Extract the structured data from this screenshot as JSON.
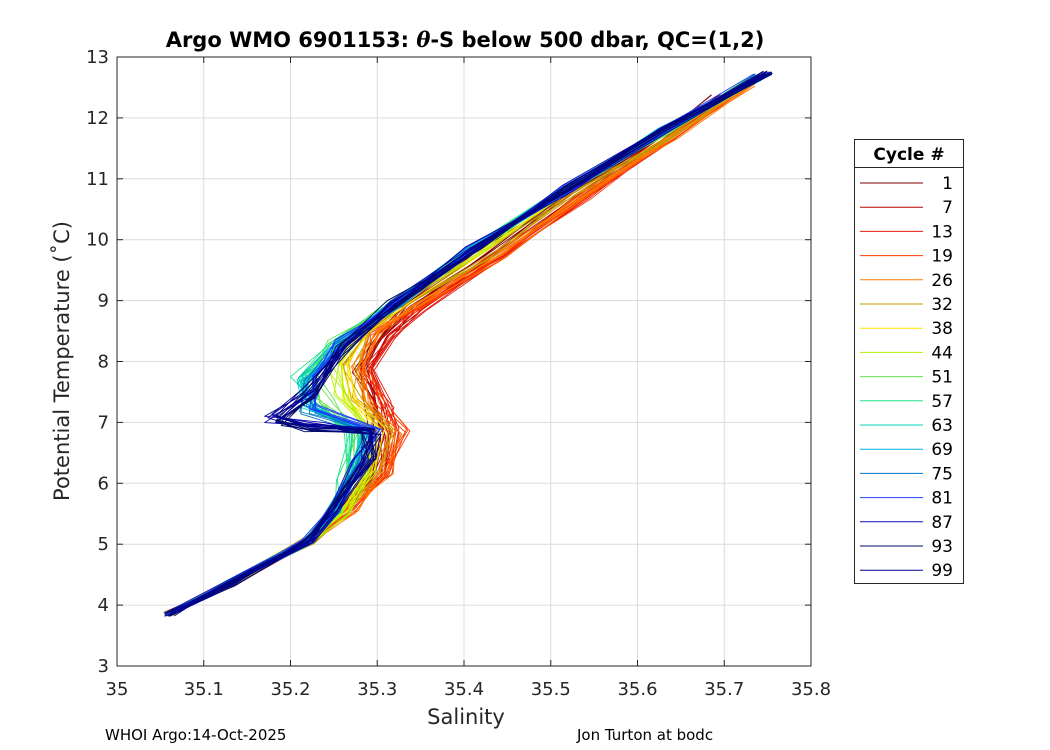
{
  "chart_data": {
    "type": "line",
    "title_parts": [
      "Argo WMO 6901153: ",
      "θ",
      "-S below 500 dbar,  QC=(1,2)"
    ],
    "xlabel": "Salinity",
    "ylabel": "Potential Temperature (˚C)",
    "xlim": [
      35,
      35.8
    ],
    "ylim": [
      3,
      13
    ],
    "xticks": [
      35,
      35.1,
      35.2,
      35.3,
      35.4,
      35.5,
      35.6,
      35.7,
      35.8
    ],
    "xtick_labels": [
      "35",
      "35.1",
      "35.2",
      "35.3",
      "35.4",
      "35.5",
      "35.6",
      "35.7",
      "35.8"
    ],
    "yticks": [
      3,
      4,
      5,
      6,
      7,
      8,
      9,
      10,
      11,
      12,
      13
    ],
    "ytick_labels": [
      "3",
      "4",
      "5",
      "6",
      "7",
      "8",
      "9",
      "10",
      "11",
      "12",
      "13"
    ],
    "grid": true,
    "legend_title": "Cycle #",
    "legend_position": "outside-right",
    "series": [
      {
        "name": "1",
        "color": "#7f0000",
        "x": [
          35.06,
          35.13,
          35.22,
          35.26,
          35.29,
          35.3,
          35.29,
          35.28,
          35.3,
          35.34,
          35.42,
          35.52,
          35.62,
          35.69
        ],
        "y": [
          3.85,
          4.35,
          5.05,
          5.55,
          6.15,
          6.8,
          7.35,
          7.85,
          8.45,
          8.95,
          9.75,
          10.75,
          11.65,
          12.35
        ]
      },
      {
        "name": "7",
        "color": "#bb0000",
        "x": [
          35.06,
          35.13,
          35.22,
          35.26,
          35.3,
          35.31,
          35.3,
          35.29,
          35.31,
          35.35,
          35.43,
          35.53,
          35.63,
          35.71
        ],
        "y": [
          3.85,
          4.35,
          5.05,
          5.55,
          6.15,
          6.8,
          7.3,
          7.85,
          8.4,
          8.9,
          9.7,
          10.7,
          11.65,
          12.45
        ]
      },
      {
        "name": "13",
        "color": "#e41a0e",
        "x": [
          35.06,
          35.13,
          35.22,
          35.26,
          35.31,
          35.32,
          35.31,
          35.29,
          35.31,
          35.35,
          35.44,
          35.54,
          35.64,
          35.72
        ],
        "y": [
          3.85,
          4.35,
          5.05,
          5.55,
          6.2,
          6.85,
          7.3,
          7.9,
          8.4,
          8.9,
          9.7,
          10.7,
          11.7,
          12.5
        ]
      },
      {
        "name": "19",
        "color": "#ff3c00",
        "x": [
          35.06,
          35.13,
          35.22,
          35.27,
          35.31,
          35.33,
          35.3,
          35.28,
          35.3,
          35.35,
          35.44,
          35.54,
          35.64,
          35.73
        ],
        "y": [
          3.85,
          4.35,
          5.05,
          5.55,
          6.2,
          6.85,
          7.35,
          7.95,
          8.45,
          8.9,
          9.75,
          10.7,
          11.7,
          12.55
        ]
      },
      {
        "name": "26",
        "color": "#ff7a00",
        "x": [
          35.06,
          35.13,
          35.22,
          35.27,
          35.31,
          35.32,
          35.29,
          35.28,
          35.3,
          35.35,
          35.44,
          35.54,
          35.64,
          35.73
        ],
        "y": [
          3.85,
          4.35,
          5.05,
          5.55,
          6.2,
          6.85,
          7.35,
          7.95,
          8.5,
          8.95,
          9.75,
          10.75,
          11.7,
          12.55
        ]
      },
      {
        "name": "32",
        "color": "#c89a00",
        "x": [
          35.06,
          35.13,
          35.22,
          35.26,
          35.3,
          35.31,
          35.28,
          35.27,
          35.29,
          35.34,
          35.43,
          35.53,
          35.64,
          35.73
        ],
        "y": [
          3.85,
          4.35,
          5.05,
          5.55,
          6.2,
          6.85,
          7.4,
          7.95,
          8.5,
          9.0,
          9.8,
          10.8,
          11.7,
          12.6
        ]
      },
      {
        "name": "38",
        "color": "#ffe600",
        "x": [
          35.06,
          35.13,
          35.22,
          35.26,
          35.29,
          35.3,
          35.27,
          35.26,
          35.28,
          35.33,
          35.42,
          35.52,
          35.63,
          35.73
        ],
        "y": [
          3.85,
          4.35,
          5.05,
          5.55,
          6.2,
          6.85,
          7.4,
          7.95,
          8.5,
          9.0,
          9.85,
          10.85,
          11.75,
          12.6
        ]
      },
      {
        "name": "44",
        "color": "#b5f000",
        "x": [
          35.06,
          35.13,
          35.22,
          35.26,
          35.29,
          35.29,
          35.26,
          35.25,
          35.28,
          35.33,
          35.42,
          35.52,
          35.63,
          35.73
        ],
        "y": [
          3.85,
          4.35,
          5.05,
          5.5,
          6.15,
          6.85,
          7.4,
          7.95,
          8.5,
          9.0,
          9.85,
          10.85,
          11.75,
          12.6
        ]
      },
      {
        "name": "51",
        "color": "#5ee64a",
        "x": [
          35.06,
          35.13,
          35.22,
          35.25,
          35.27,
          35.28,
          35.24,
          35.22,
          35.25,
          35.32,
          35.41,
          35.52,
          35.63,
          35.73
        ],
        "y": [
          3.85,
          4.35,
          5.05,
          5.55,
          6.15,
          6.85,
          7.35,
          7.8,
          8.3,
          8.95,
          9.85,
          10.85,
          11.75,
          12.65
        ]
      },
      {
        "name": "57",
        "color": "#1fe28a",
        "x": [
          35.06,
          35.13,
          35.22,
          35.25,
          35.26,
          35.27,
          35.22,
          35.21,
          35.25,
          35.32,
          35.41,
          35.52,
          35.63,
          35.74
        ],
        "y": [
          3.85,
          4.35,
          5.05,
          5.55,
          6.1,
          6.85,
          7.35,
          7.75,
          8.25,
          8.95,
          9.85,
          10.85,
          11.8,
          12.65
        ]
      },
      {
        "name": "63",
        "color": "#00d3b8",
        "x": [
          35.06,
          35.13,
          35.22,
          35.25,
          35.27,
          35.28,
          35.22,
          35.21,
          35.25,
          35.32,
          35.41,
          35.52,
          35.63,
          35.74
        ],
        "y": [
          3.85,
          4.35,
          5.05,
          5.55,
          6.2,
          6.85,
          7.3,
          7.7,
          8.2,
          8.95,
          9.85,
          10.85,
          11.8,
          12.65
        ]
      },
      {
        "name": "69",
        "color": "#00b4e0",
        "x": [
          35.06,
          35.13,
          35.22,
          35.25,
          35.28,
          35.29,
          35.23,
          35.21,
          35.25,
          35.32,
          35.41,
          35.52,
          35.63,
          35.74
        ],
        "y": [
          3.85,
          4.35,
          5.05,
          5.55,
          6.3,
          6.85,
          7.25,
          7.65,
          8.2,
          8.95,
          9.85,
          10.85,
          11.8,
          12.65
        ]
      },
      {
        "name": "75",
        "color": "#0078c8",
        "x": [
          35.06,
          35.13,
          35.22,
          35.25,
          35.28,
          35.29,
          35.22,
          35.22,
          35.26,
          35.32,
          35.41,
          35.52,
          35.63,
          35.74
        ],
        "y": [
          3.85,
          4.35,
          5.05,
          5.55,
          6.35,
          6.85,
          7.2,
          7.7,
          8.25,
          8.95,
          9.85,
          10.85,
          11.8,
          12.7
        ]
      },
      {
        "name": "81",
        "color": "#1c3fff",
        "x": [
          35.06,
          35.13,
          35.22,
          35.25,
          35.28,
          35.3,
          35.22,
          35.23,
          35.26,
          35.32,
          35.41,
          35.52,
          35.63,
          35.74
        ],
        "y": [
          3.85,
          4.35,
          5.05,
          5.55,
          6.4,
          6.85,
          7.25,
          7.75,
          8.3,
          8.95,
          9.85,
          10.85,
          11.8,
          12.7
        ]
      },
      {
        "name": "87",
        "color": "#0a0ab4",
        "x": [
          35.06,
          35.13,
          35.22,
          35.25,
          35.28,
          35.3,
          35.23,
          35.18,
          35.23,
          35.26,
          35.32,
          35.41,
          35.52,
          35.63,
          35.75
        ],
        "y": [
          3.85,
          4.35,
          5.05,
          5.55,
          6.4,
          6.85,
          6.95,
          7.05,
          7.5,
          8.25,
          8.95,
          9.85,
          10.85,
          11.8,
          12.75
        ]
      },
      {
        "name": "93",
        "color": "#000a64",
        "x": [
          35.06,
          35.13,
          35.22,
          35.25,
          35.29,
          35.29,
          35.22,
          35.18,
          35.22,
          35.26,
          35.32,
          35.41,
          35.52,
          35.63,
          35.75
        ],
        "y": [
          3.85,
          4.35,
          5.05,
          5.55,
          6.4,
          6.85,
          6.9,
          7.0,
          7.45,
          8.25,
          8.95,
          9.85,
          10.85,
          11.8,
          12.75
        ]
      },
      {
        "name": "99",
        "color": "#00008c",
        "x": [
          35.06,
          35.13,
          35.22,
          35.25,
          35.29,
          35.3,
          35.22,
          35.18,
          35.22,
          35.27,
          35.32,
          35.41,
          35.52,
          35.63,
          35.75
        ],
        "y": [
          3.85,
          4.35,
          5.05,
          5.55,
          6.45,
          6.85,
          6.95,
          7.1,
          7.5,
          8.3,
          8.95,
          9.85,
          10.85,
          11.8,
          12.75
        ]
      }
    ]
  },
  "footer": {
    "left": "WHOI Argo:14-Oct-2025",
    "right": "Jon Turton at bodc"
  }
}
